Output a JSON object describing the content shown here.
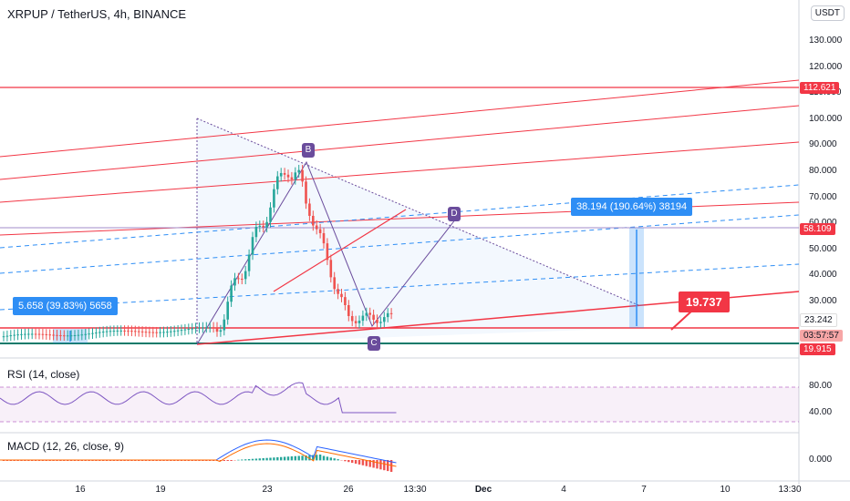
{
  "header": {
    "title": "XRPUP / TetherUS, 4h, BINANCE",
    "currency": "USDT"
  },
  "indicators": {
    "rsi_label": "RSI (14, close)",
    "macd_label": "MACD (12, 26, close, 9)"
  },
  "price_tags": {
    "resistance": "112.621",
    "level": "58.109",
    "current": "23.242",
    "countdown": "03:57:57",
    "support": "19.915"
  },
  "measure_left": "5.658 (39.83%) 5658",
  "measure_right": "38.194 (190.64%) 38194",
  "callout": "19.737",
  "points": [
    "B",
    "C",
    "D"
  ],
  "colors": {
    "up": "#26a69a",
    "down": "#ef5350",
    "accent": "#2e8ef5",
    "pattern": "#6a4c9c",
    "fib": "#f23645"
  },
  "chart_data": {
    "type": "candlestick",
    "title": "XRPUP / TetherUS, 4h, BINANCE",
    "x_ticks": [
      "16",
      "19",
      "23",
      "26",
      "13:30",
      "Dec",
      "4",
      "7",
      "10",
      "13:30"
    ],
    "y_ticks": [
      "130.000",
      "120.000",
      "110.000",
      "100.000",
      "90.000",
      "80.000",
      "70.000",
      "60.000",
      "50.000",
      "40.000",
      "30.000"
    ],
    "rsi_ticks": [
      "80.00",
      "40.00"
    ],
    "macd_ticks": [
      "0.000"
    ]
  }
}
